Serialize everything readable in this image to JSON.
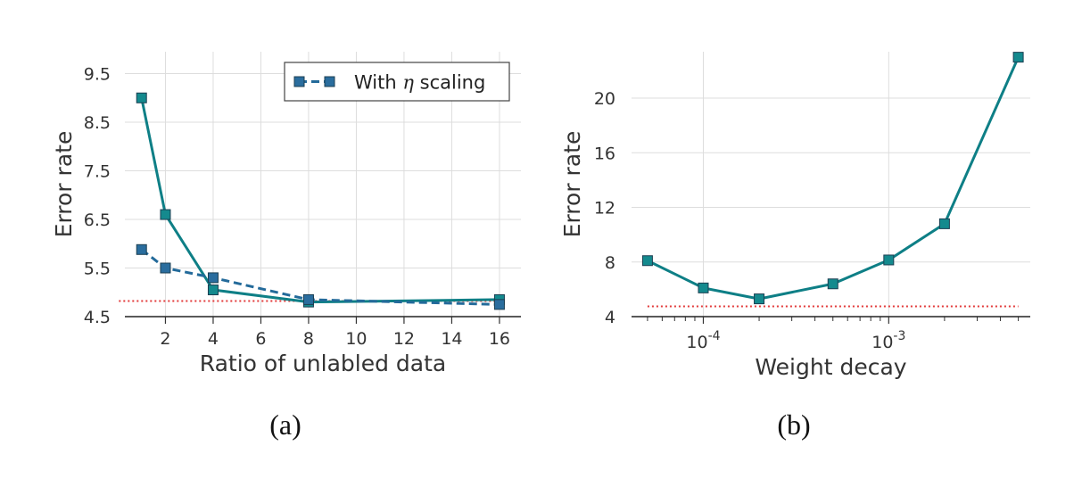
{
  "chart_data": [
    {
      "type": "line",
      "caption": "(a)",
      "xlabel": "Ratio of unlabled data",
      "ylabel": "Error rate",
      "xlim": [
        0.3,
        16.9
      ],
      "ylim": [
        4.5,
        9.95
      ],
      "xticks": [
        2,
        4,
        6,
        8,
        10,
        12,
        14,
        16
      ],
      "yticks": [
        4.5,
        5.5,
        6.5,
        7.5,
        8.5,
        9.5
      ],
      "ytick_labels": [
        "4.5",
        "5.5",
        "6.5",
        "7.5",
        "8.5",
        "9.5"
      ],
      "grid": true,
      "legend": {
        "position": "top-right",
        "label_before": "With ",
        "eta": "η",
        "label_after": " scaling"
      },
      "series": [
        {
          "style": "solid",
          "color": "#0e7f86",
          "marker_color": "#148a8e",
          "x": [
            1,
            2,
            4,
            8,
            16
          ],
          "y": [
            9.0,
            6.6,
            5.05,
            4.8,
            4.85
          ]
        },
        {
          "name": "With η scaling",
          "style": "dashed",
          "color": "#236a9a",
          "marker_color": "#2a6d9e",
          "x": [
            1,
            2,
            4,
            8,
            16
          ],
          "y": [
            5.88,
            5.5,
            5.3,
            4.85,
            4.75
          ]
        }
      ],
      "reference_line": {
        "style": "dotted",
        "color": "#e23a3a",
        "y": 4.82,
        "x_range": [
          0.05,
          15.9
        ]
      }
    },
    {
      "type": "line",
      "caption": "(b)",
      "xlabel": "Weight decay",
      "ylabel": "Error rate",
      "xscale": "log",
      "xlim": [
        4.1e-05,
        0.0058
      ],
      "ylim": [
        4,
        23.4
      ],
      "xticks": [
        0.0001,
        0.001
      ],
      "xtick_base": "10",
      "xtick_exponents": [
        "-4",
        "-3"
      ],
      "yticks": [
        4,
        8,
        12,
        16,
        20
      ],
      "ytick_labels": [
        "4",
        "8",
        "12",
        "16",
        "20"
      ],
      "grid": true,
      "series": [
        {
          "style": "solid",
          "color": "#0e7f86",
          "marker_color": "#148a8e",
          "x": [
            5e-05,
            0.0001,
            0.0002,
            0.0005,
            0.001,
            0.002,
            0.005
          ],
          "y": [
            8.1,
            6.1,
            5.3,
            6.4,
            8.15,
            10.8,
            23.0
          ]
        }
      ],
      "reference_line": {
        "style": "dotted",
        "color": "#e23a3a",
        "y": 4.75,
        "x_range": [
          5e-05,
          0.005
        ]
      }
    }
  ]
}
